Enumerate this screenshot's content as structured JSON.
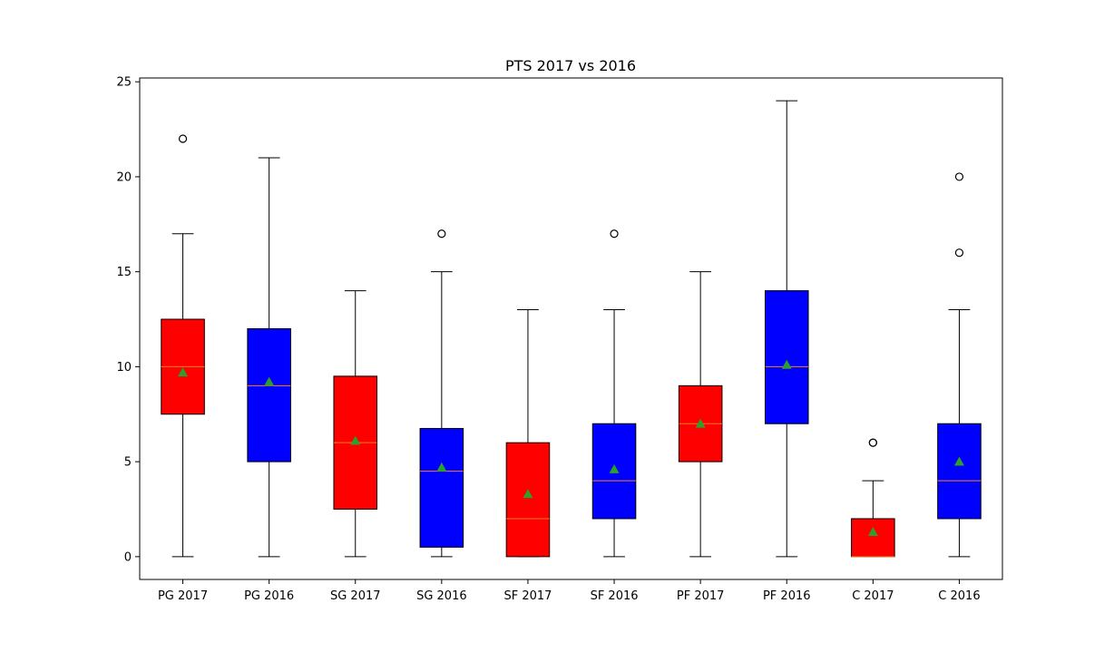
{
  "chart_data": {
    "type": "boxplot",
    "title": "PTS 2017 vs 2016",
    "xlabel": "",
    "ylabel": "",
    "ylim": [
      -1.2,
      25.2
    ],
    "yticks": [
      0,
      5,
      10,
      15,
      20,
      25
    ],
    "categories": [
      "PG 2017",
      "PG 2016",
      "SG 2017",
      "SG 2016",
      "SF 2017",
      "SF 2016",
      "PF 2017",
      "PF 2016",
      "C 2017",
      "C 2016"
    ],
    "box_colors": [
      "#ff0000",
      "#0000ff",
      "#ff0000",
      "#0000ff",
      "#ff0000",
      "#0000ff",
      "#ff0000",
      "#0000ff",
      "#ff0000",
      "#0000ff"
    ],
    "median_color": "#ff7f0e",
    "mean_color": "#2ca02c",
    "grid": false,
    "boxes": [
      {
        "label": "PG 2017",
        "whislo": 0,
        "q1": 7.5,
        "med": 10,
        "q3": 12.5,
        "whishi": 17,
        "mean": 9.7,
        "fliers": [
          22
        ]
      },
      {
        "label": "PG 2016",
        "whislo": 0,
        "q1": 5,
        "med": 9,
        "q3": 12,
        "whishi": 21,
        "mean": 9.2,
        "fliers": []
      },
      {
        "label": "SG 2017",
        "whislo": 0,
        "q1": 2.5,
        "med": 6,
        "q3": 9.5,
        "whishi": 14,
        "mean": 6.1,
        "fliers": []
      },
      {
        "label": "SG 2016",
        "whislo": 0,
        "q1": 0.5,
        "med": 4.5,
        "q3": 6.75,
        "whishi": 15,
        "mean": 4.7,
        "fliers": [
          17
        ]
      },
      {
        "label": "SF 2017",
        "whislo": 0,
        "q1": 0,
        "med": 2,
        "q3": 6,
        "whishi": 13,
        "mean": 3.3,
        "fliers": []
      },
      {
        "label": "SF 2016",
        "whislo": 0,
        "q1": 2,
        "med": 4,
        "q3": 7,
        "whishi": 13,
        "mean": 4.6,
        "fliers": [
          17
        ]
      },
      {
        "label": "PF 2017",
        "whislo": 0,
        "q1": 5,
        "med": 7,
        "q3": 9,
        "whishi": 15,
        "mean": 7.0,
        "fliers": []
      },
      {
        "label": "PF 2016",
        "whislo": 0,
        "q1": 7,
        "med": 10,
        "q3": 14,
        "whishi": 24,
        "mean": 10.1,
        "fliers": []
      },
      {
        "label": "C 2017",
        "whislo": 0,
        "q1": 0,
        "med": 0,
        "q3": 2,
        "whishi": 4,
        "mean": 1.3,
        "fliers": [
          6,
          6
        ]
      },
      {
        "label": "C 2016",
        "whislo": 0,
        "q1": 2,
        "med": 4,
        "q3": 7,
        "whishi": 13,
        "mean": 5.0,
        "fliers": [
          16,
          20
        ]
      }
    ]
  }
}
